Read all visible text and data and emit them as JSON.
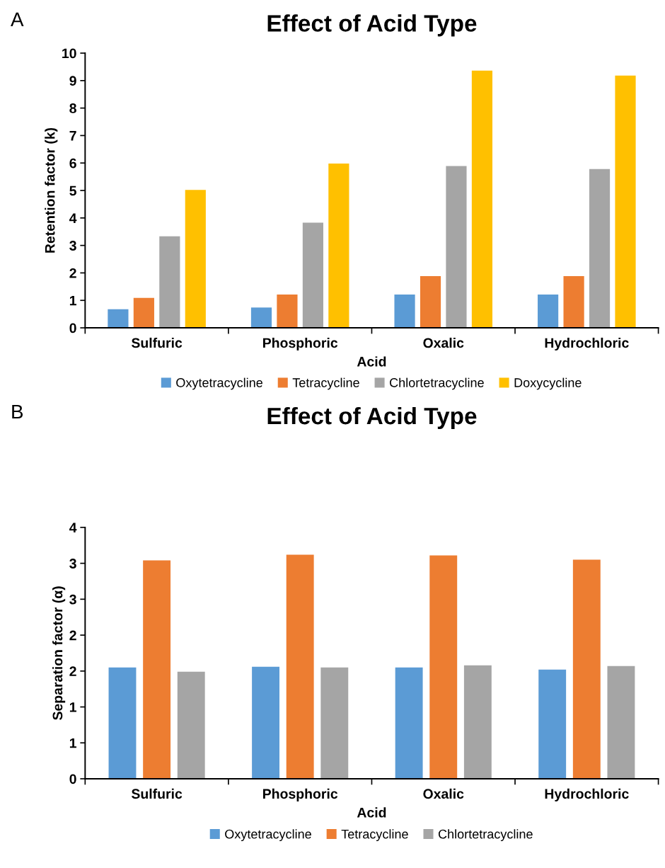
{
  "chart_data": [
    {
      "type": "bar",
      "title": "Effect of Acid Type",
      "xlabel": "Acid",
      "ylabel": "Retention factor (k)",
      "annotations": [
        "A"
      ],
      "categories": [
        "Sulfuric",
        "Phosphoric",
        "Oxalic",
        "Hydrochloric"
      ],
      "series": [
        {
          "name": "Oxytetracycline",
          "color": "#5b9bd5",
          "values": [
            0.68,
            0.74,
            1.21,
            1.21
          ]
        },
        {
          "name": "Tetracycline",
          "color": "#ed7d31",
          "values": [
            1.09,
            1.21,
            1.88,
            1.88
          ]
        },
        {
          "name": "Chlortetracycline",
          "color": "#a5a5a5",
          "values": [
            3.33,
            3.83,
            5.89,
            5.78
          ]
        },
        {
          "name": "Doxycycline",
          "color": "#ffc000",
          "values": [
            5.02,
            5.98,
            9.36,
            9.18
          ]
        }
      ],
      "ylim": [
        0,
        10
      ],
      "yticks": [
        0,
        1,
        2,
        3,
        4,
        5,
        6,
        7,
        8,
        9,
        10
      ],
      "grid": false,
      "legend": "bottom"
    },
    {
      "type": "bar",
      "title": "Effect of Acid Type",
      "xlabel": "Acid",
      "ylabel": "Separation factor (α)",
      "annotations": [
        "B"
      ],
      "categories": [
        "Sulfuric",
        "Phosphoric",
        "Oxalic",
        "Hydrochloric"
      ],
      "series": [
        {
          "name": "Oxytetracycline",
          "color": "#5b9bd5",
          "values": [
            1.55,
            1.56,
            1.55,
            1.52
          ]
        },
        {
          "name": "Tetracycline",
          "color": "#ed7d31",
          "values": [
            3.04,
            3.12,
            3.11,
            3.05
          ]
        },
        {
          "name": "Chlortetracycline",
          "color": "#a5a5a5",
          "values": [
            1.49,
            1.55,
            1.58,
            1.57
          ]
        }
      ],
      "ylim": [
        0,
        3.5
      ],
      "yticks": [
        0,
        {
          "value": 0.5,
          "label": "1"
        },
        1,
        {
          "value": 1.5,
          "label": "2"
        },
        2,
        {
          "value": 2.5,
          "label": "3"
        },
        3,
        {
          "value": 3.5,
          "label": "4"
        }
      ],
      "grid": false,
      "legend": "bottom"
    }
  ]
}
